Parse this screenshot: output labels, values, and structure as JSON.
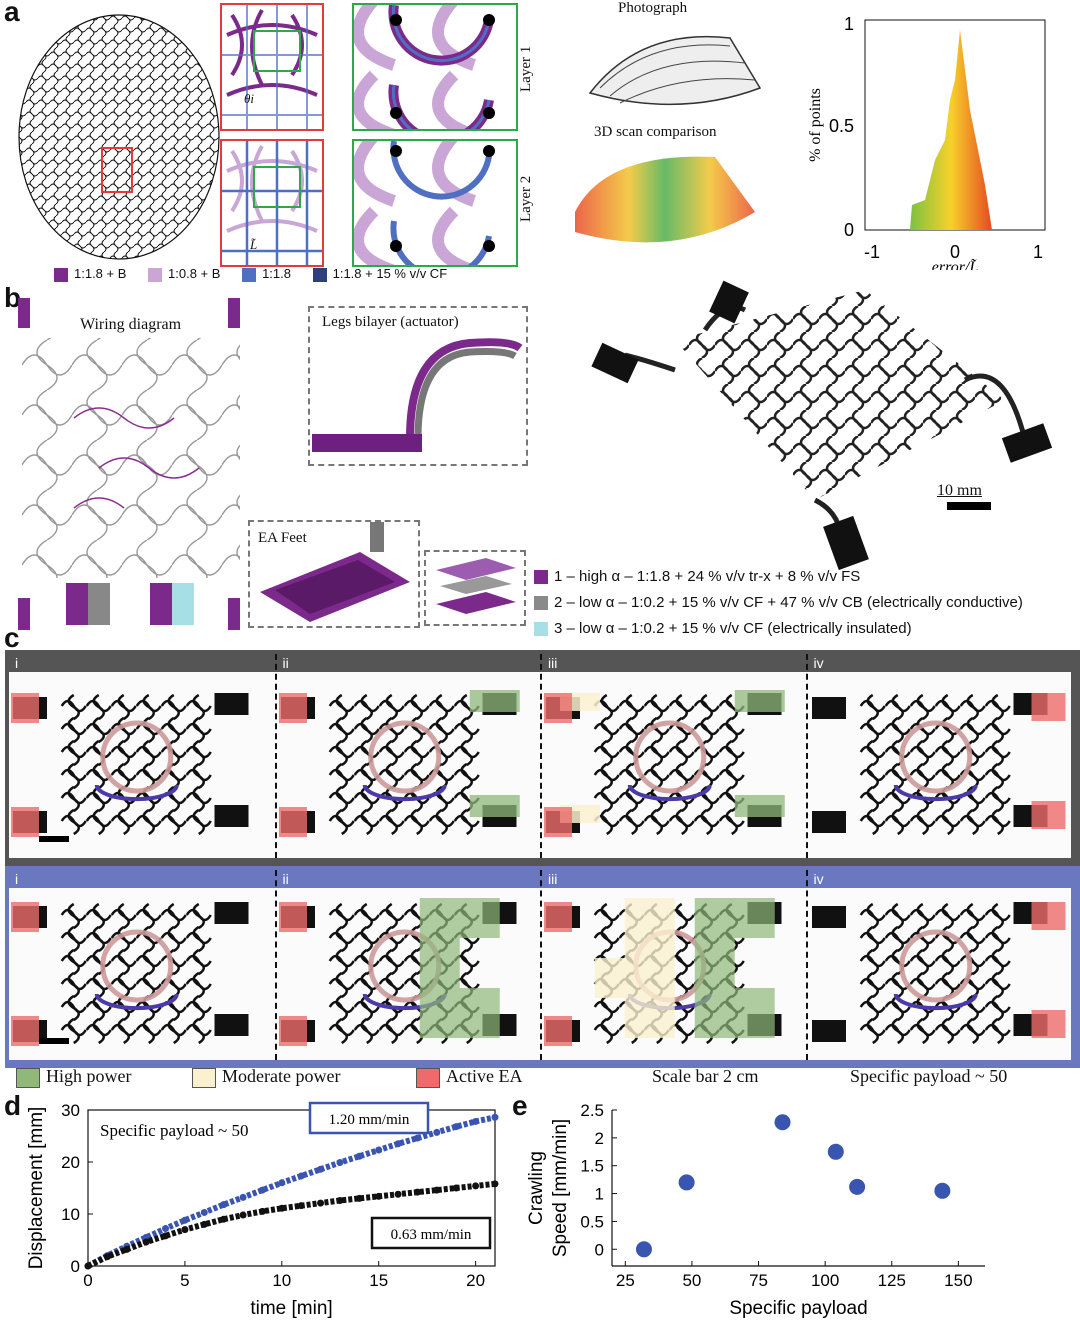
{
  "panels": {
    "a": "a",
    "b": "b",
    "c": "c",
    "d": "d",
    "e": "e"
  },
  "panel_a": {
    "layer1": "Layer 1",
    "layer2": "Layer 2",
    "photo_title": "Photograph",
    "scan_title": "3D scan comparison",
    "theta": "θi",
    "ltilde": "L̃",
    "legend": [
      {
        "label": "1:1.8 + B",
        "color": "#7b2a8c"
      },
      {
        "label": "1:0.8 + B",
        "color": "#c9a6d6"
      },
      {
        "label": "1:1.8",
        "color": "#4f6fc0"
      },
      {
        "label": "1:1.8 + 15 % v/v CF",
        "color": "#2e3f7e"
      }
    ],
    "hist": {
      "ylabel": "% of points",
      "xlabel": "error/L̃",
      "yticks": [
        "1",
        "0.5",
        "0"
      ],
      "xticks": [
        "-1",
        "0",
        "1"
      ]
    }
  },
  "panel_b": {
    "wiring": "Wiring diagram",
    "legs": "Legs bilayer (actuator)",
    "feet": "EA Feet",
    "scale": "10 mm",
    "legend": [
      {
        "label": "1 – high α – 1:1.8 + 24 % v/v tr-x + 8 % v/v FS",
        "color": "#7b2a8c"
      },
      {
        "label": "2  – low α – 1:0.2 + 15 % v/v CF + 47 % v/v CB (electrically conductive)",
        "color": "#8a8a8a"
      },
      {
        "label": "3 – low α – 1:0.2 + 15 % v/v CF (electrically insulated)",
        "color": "#a6e0e6"
      }
    ]
  },
  "panel_c": {
    "row1_labels": [
      "i",
      "ii",
      "iii",
      "iv"
    ],
    "row2_labels": [
      "i",
      "ii",
      "iii",
      "iv"
    ],
    "row1_color": "#555555",
    "row2_color": "#6a78c0",
    "legend": [
      {
        "label": "High power",
        "color": "#8fb87a"
      },
      {
        "label": "Moderate power",
        "color": "#fbf1cf"
      },
      {
        "label": "Active EA",
        "color": "#ef6b6b"
      }
    ],
    "scale_bar": "Scale bar 2 cm",
    "payload": "Specific payload ~ 50"
  },
  "chart_data": [
    {
      "type": "line",
      "panel": "d",
      "annotation": "Specific payload ~ 50",
      "xlabel": "time [min]",
      "ylabel": "Displacement [mm]",
      "xlim": [
        0,
        21
      ],
      "ylim": [
        0,
        30
      ],
      "xticks": [
        0,
        5,
        10,
        15,
        20
      ],
      "yticks": [
        0,
        10,
        20,
        30
      ],
      "series": [
        {
          "name": "1.20 mm/min",
          "color": "#3a55b0",
          "x": [
            0,
            1,
            2,
            3,
            4,
            5,
            6,
            7,
            8,
            9,
            10,
            11,
            12,
            13,
            14,
            15,
            16,
            17,
            18,
            19,
            20,
            21
          ],
          "y": [
            0,
            2,
            3.8,
            5.5,
            7.2,
            8.8,
            10.3,
            11.8,
            13.2,
            14.6,
            16,
            17.3,
            18.6,
            19.9,
            21.1,
            22.3,
            23.5,
            24.6,
            25.7,
            26.8,
            27.8,
            28.6
          ]
        },
        {
          "name": "0.63 mm/min",
          "color": "#111111",
          "x": [
            0,
            1,
            2,
            3,
            4,
            5,
            6,
            7,
            8,
            9,
            10,
            11,
            12,
            13,
            14,
            15,
            16,
            17,
            18,
            19,
            20,
            21
          ],
          "y": [
            0,
            1.8,
            3.2,
            4.6,
            5.8,
            7,
            8,
            9,
            9.8,
            10.5,
            11.1,
            11.6,
            12.1,
            12.6,
            13,
            13.4,
            13.8,
            14.2,
            14.6,
            15,
            15.4,
            15.8
          ]
        }
      ]
    },
    {
      "type": "scatter",
      "panel": "e",
      "xlabel": "Specific payload",
      "ylabel": "Crawling Speed [mm/min]",
      "xlim": [
        20,
        160
      ],
      "ylim": [
        -0.3,
        2.5
      ],
      "xticks": [
        25,
        50,
        75,
        100,
        125,
        150
      ],
      "yticks": [
        0,
        0.5,
        1,
        1.5,
        2,
        2.5
      ],
      "points": {
        "x": [
          32,
          48,
          84,
          104,
          112,
          144
        ],
        "y": [
          0,
          1.2,
          2.28,
          1.75,
          1.12,
          1.05
        ]
      },
      "color": "#3a55b0"
    }
  ]
}
